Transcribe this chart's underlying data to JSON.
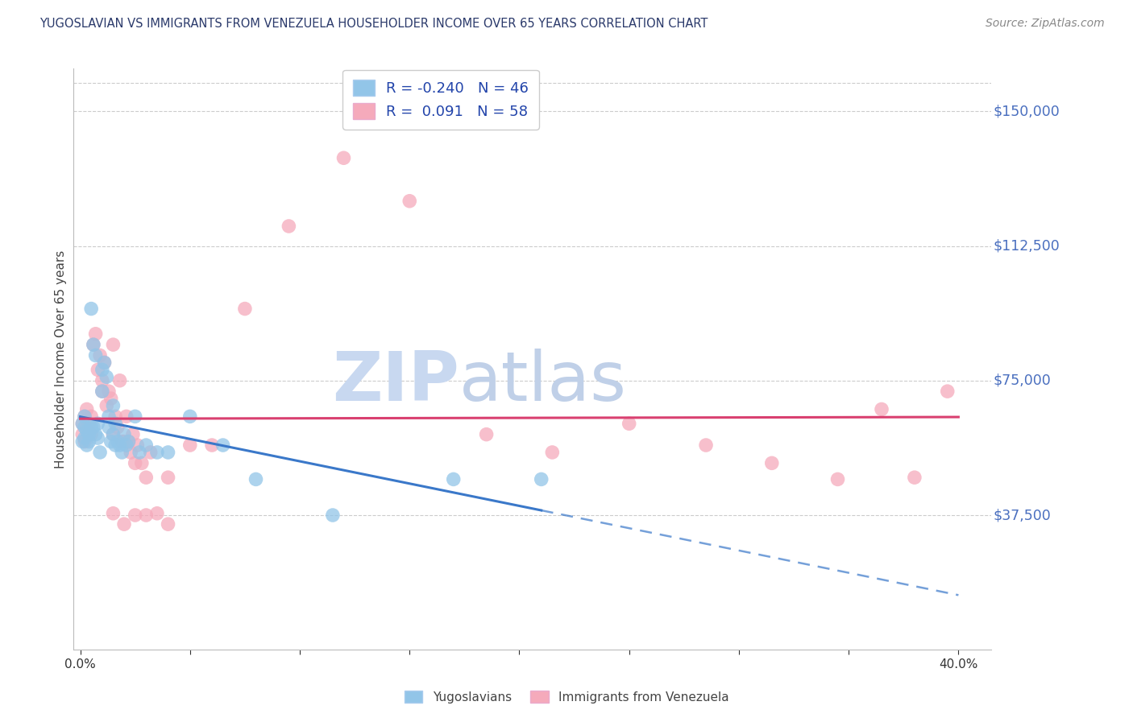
{
  "title": "YUGOSLAVIAN VS IMMIGRANTS FROM VENEZUELA HOUSEHOLDER INCOME OVER 65 YEARS CORRELATION CHART",
  "source": "Source: ZipAtlas.com",
  "ylabel": "Householder Income Over 65 years",
  "y_ticks": [
    0,
    37500,
    75000,
    112500,
    150000
  ],
  "y_tick_labels": [
    "",
    "$37,500",
    "$75,000",
    "$112,500",
    "$150,000"
  ],
  "x_ticks": [
    0.0,
    0.05,
    0.1,
    0.15,
    0.2,
    0.25,
    0.3,
    0.35,
    0.4
  ],
  "ylim": [
    0,
    162000
  ],
  "xlim": [
    -0.003,
    0.415
  ],
  "blue_color": "#92C5E8",
  "pink_color": "#F5AABB",
  "trend_blue_color": "#3A78C9",
  "trend_pink_color": "#D94070",
  "grid_color": "#CCCCCC",
  "background_color": "#FFFFFF",
  "title_color": "#2B3A6B",
  "y_label_color": "#4A6FBF",
  "watermark_color_zip": "#C8D8F0",
  "watermark_color_atlas": "#B8CCE8",
  "R_blue": -0.24,
  "N_blue": 46,
  "R_pink": 0.091,
  "N_pink": 58,
  "blue_intercept": 63000,
  "blue_slope": -700000,
  "pink_intercept": 59000,
  "pink_slope": 35000,
  "blue_x": [
    0.001,
    0.001,
    0.002,
    0.002,
    0.002,
    0.003,
    0.003,
    0.004,
    0.004,
    0.005,
    0.005,
    0.006,
    0.006,
    0.007,
    0.007,
    0.008,
    0.008,
    0.009,
    0.01,
    0.01,
    0.011,
    0.012,
    0.013,
    0.013,
    0.014,
    0.015,
    0.015,
    0.016,
    0.016,
    0.017,
    0.018,
    0.019,
    0.02,
    0.021,
    0.022,
    0.025,
    0.027,
    0.03,
    0.035,
    0.04,
    0.05,
    0.065,
    0.08,
    0.115,
    0.17,
    0.21
  ],
  "blue_y": [
    63000,
    58000,
    62000,
    59000,
    65000,
    61000,
    57000,
    60000,
    58000,
    62000,
    95000,
    85000,
    62000,
    82000,
    60000,
    63000,
    59000,
    55000,
    78000,
    72000,
    80000,
    76000,
    65000,
    62000,
    58000,
    68000,
    60000,
    63000,
    57000,
    58000,
    57000,
    55000,
    60000,
    57000,
    58000,
    65000,
    55000,
    57000,
    55000,
    55000,
    65000,
    57000,
    47500,
    37500,
    47500,
    47500
  ],
  "pink_x": [
    0.001,
    0.001,
    0.002,
    0.002,
    0.003,
    0.003,
    0.004,
    0.004,
    0.005,
    0.005,
    0.006,
    0.007,
    0.008,
    0.009,
    0.01,
    0.01,
    0.011,
    0.012,
    0.013,
    0.014,
    0.015,
    0.015,
    0.016,
    0.017,
    0.018,
    0.019,
    0.02,
    0.021,
    0.022,
    0.023,
    0.024,
    0.025,
    0.026,
    0.028,
    0.03,
    0.032,
    0.035,
    0.04,
    0.05,
    0.06,
    0.075,
    0.095,
    0.12,
    0.15,
    0.185,
    0.215,
    0.25,
    0.285,
    0.315,
    0.345,
    0.365,
    0.38,
    0.395,
    0.015,
    0.02,
    0.025,
    0.03,
    0.04
  ],
  "pink_y": [
    63000,
    60000,
    65000,
    58000,
    62000,
    67000,
    60000,
    63000,
    65000,
    60000,
    85000,
    88000,
    78000,
    82000,
    75000,
    72000,
    80000,
    68000,
    72000,
    70000,
    85000,
    60000,
    65000,
    62000,
    75000,
    58000,
    58000,
    65000,
    58000,
    55000,
    60000,
    52000,
    57000,
    52000,
    48000,
    55000,
    38000,
    48000,
    57000,
    57000,
    95000,
    118000,
    137000,
    125000,
    60000,
    55000,
    63000,
    57000,
    52000,
    47500,
    67000,
    48000,
    72000,
    38000,
    35000,
    37500,
    37500,
    35000
  ]
}
